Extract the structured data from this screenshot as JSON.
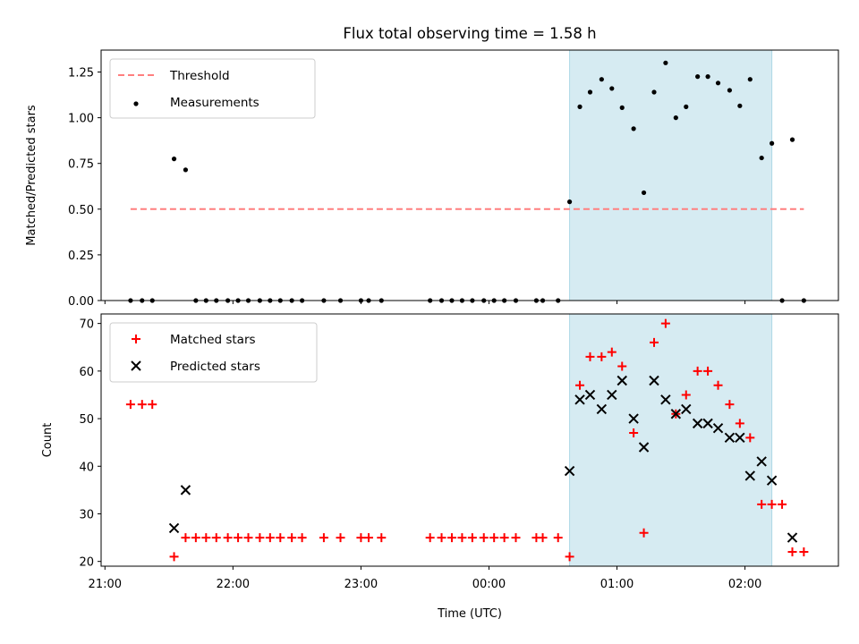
{
  "chart_data": {
    "title": "Flux total observing time = 1.58 h",
    "xlabel": "Time (UTC)",
    "x_unit": "hours relative to 00:00 UTC",
    "xlim": [
      -3.03,
      2.73
    ],
    "x_ticks": [
      {
        "x": -3,
        "label": "21:00"
      },
      {
        "x": -2,
        "label": "22:00"
      },
      {
        "x": -1,
        "label": "23:00"
      },
      {
        "x": 0,
        "label": "00:00"
      },
      {
        "x": 1,
        "label": "01:00"
      },
      {
        "x": 2,
        "label": "02:00"
      }
    ],
    "shaded_interval": {
      "x_start": 0.63,
      "x_end": 2.21,
      "color": "#add8e6"
    },
    "panels": [
      {
        "type": "scatter",
        "ylabel": "Matched/Predicted stars",
        "ylim": [
          0,
          1.37
        ],
        "y_ticks": [
          0,
          0.25,
          0.5,
          0.75,
          1.0,
          1.25
        ],
        "y_tick_labels": [
          "0.00",
          "0.25",
          "0.50",
          "0.75",
          "1.00",
          "1.25"
        ],
        "legend": {
          "position": "top-left",
          "entries": [
            "Threshold",
            "Measurements"
          ]
        },
        "threshold": {
          "name": "Threshold",
          "y": 0.5,
          "x_start": -2.8,
          "x_end": 2.46,
          "color": "#ff7f7f"
        },
        "series": [
          {
            "name": "Measurements",
            "color": "#000000",
            "marker": "dot",
            "points": [
              [
                -2.8,
                0
              ],
              [
                -2.71,
                0
              ],
              [
                -2.63,
                0
              ],
              [
                -2.46,
                0.775
              ],
              [
                -2.37,
                0.715
              ],
              [
                -2.29,
                0
              ],
              [
                -2.21,
                0
              ],
              [
                -2.13,
                0
              ],
              [
                -2.04,
                0
              ],
              [
                -1.96,
                0
              ],
              [
                -1.88,
                0
              ],
              [
                -1.79,
                0
              ],
              [
                -1.71,
                0
              ],
              [
                -1.63,
                0
              ],
              [
                -1.54,
                0
              ],
              [
                -1.46,
                0
              ],
              [
                -1.29,
                0
              ],
              [
                -1.16,
                0
              ],
              [
                -1.0,
                0
              ],
              [
                -0.94,
                0
              ],
              [
                -0.84,
                0
              ],
              [
                -0.46,
                0
              ],
              [
                -0.37,
                0
              ],
              [
                -0.29,
                0
              ],
              [
                -0.21,
                0
              ],
              [
                -0.13,
                0
              ],
              [
                -0.04,
                0
              ],
              [
                0.04,
                0
              ],
              [
                0.12,
                0
              ],
              [
                0.21,
                0
              ],
              [
                0.37,
                0
              ],
              [
                0.42,
                0
              ],
              [
                0.54,
                0
              ],
              [
                0.63,
                0.54
              ],
              [
                0.71,
                1.06
              ],
              [
                0.79,
                1.14
              ],
              [
                0.88,
                1.21
              ],
              [
                0.96,
                1.16
              ],
              [
                1.04,
                1.055
              ],
              [
                1.13,
                0.94
              ],
              [
                1.21,
                0.59
              ],
              [
                1.29,
                1.14
              ],
              [
                1.38,
                1.3
              ],
              [
                1.46,
                1.0
              ],
              [
                1.54,
                1.06
              ],
              [
                1.63,
                1.225
              ],
              [
                1.71,
                1.225
              ],
              [
                1.79,
                1.19
              ],
              [
                1.88,
                1.15
              ],
              [
                1.96,
                1.065
              ],
              [
                2.04,
                1.21
              ],
              [
                2.13,
                0.78
              ],
              [
                2.21,
                0.86
              ],
              [
                2.29,
                0
              ],
              [
                2.37,
                0.88
              ],
              [
                2.46,
                0
              ]
            ]
          }
        ]
      },
      {
        "type": "scatter",
        "ylabel": "Count",
        "ylim": [
          19,
          72
        ],
        "y_ticks": [
          20,
          30,
          40,
          50,
          60,
          70
        ],
        "y_tick_labels": [
          "20",
          "30",
          "40",
          "50",
          "60",
          "70"
        ],
        "legend": {
          "position": "top-left",
          "entries": [
            "Matched stars",
            "Predicted stars"
          ]
        },
        "series": [
          {
            "name": "Matched stars",
            "color": "#ff0000",
            "marker": "plus",
            "points": [
              [
                -2.8,
                53
              ],
              [
                -2.71,
                53
              ],
              [
                -2.63,
                53
              ],
              [
                -2.46,
                21
              ],
              [
                -2.37,
                25
              ],
              [
                -2.29,
                25
              ],
              [
                -2.21,
                25
              ],
              [
                -2.13,
                25
              ],
              [
                -2.04,
                25
              ],
              [
                -1.96,
                25
              ],
              [
                -1.88,
                25
              ],
              [
                -1.79,
                25
              ],
              [
                -1.71,
                25
              ],
              [
                -1.63,
                25
              ],
              [
                -1.54,
                25
              ],
              [
                -1.46,
                25
              ],
              [
                -1.29,
                25
              ],
              [
                -1.16,
                25
              ],
              [
                -1.0,
                25
              ],
              [
                -0.94,
                25
              ],
              [
                -0.84,
                25
              ],
              [
                -0.46,
                25
              ],
              [
                -0.37,
                25
              ],
              [
                -0.29,
                25
              ],
              [
                -0.21,
                25
              ],
              [
                -0.13,
                25
              ],
              [
                -0.04,
                25
              ],
              [
                0.04,
                25
              ],
              [
                0.12,
                25
              ],
              [
                0.21,
                25
              ],
              [
                0.37,
                25
              ],
              [
                0.42,
                25
              ],
              [
                0.54,
                25
              ],
              [
                0.63,
                21
              ],
              [
                0.71,
                57
              ],
              [
                0.79,
                63
              ],
              [
                0.88,
                63
              ],
              [
                0.96,
                64
              ],
              [
                1.04,
                61
              ],
              [
                1.13,
                47
              ],
              [
                1.21,
                26
              ],
              [
                1.29,
                66
              ],
              [
                1.38,
                70
              ],
              [
                1.46,
                51
              ],
              [
                1.54,
                55
              ],
              [
                1.63,
                60
              ],
              [
                1.71,
                60
              ],
              [
                1.79,
                57
              ],
              [
                1.88,
                53
              ],
              [
                1.96,
                49
              ],
              [
                2.04,
                46
              ],
              [
                2.13,
                32
              ],
              [
                2.21,
                32
              ],
              [
                2.29,
                32
              ],
              [
                2.37,
                22
              ],
              [
                2.46,
                22
              ]
            ]
          },
          {
            "name": "Predicted stars",
            "color": "#000000",
            "marker": "x",
            "points": [
              [
                -2.46,
                27
              ],
              [
                -2.37,
                35
              ],
              [
                0.63,
                39
              ],
              [
                0.71,
                54
              ],
              [
                0.79,
                55
              ],
              [
                0.88,
                52
              ],
              [
                0.96,
                55
              ],
              [
                1.04,
                58
              ],
              [
                1.13,
                50
              ],
              [
                1.21,
                44
              ],
              [
                1.29,
                58
              ],
              [
                1.38,
                54
              ],
              [
                1.46,
                51
              ],
              [
                1.54,
                52
              ],
              [
                1.63,
                49
              ],
              [
                1.71,
                49
              ],
              [
                1.79,
                48
              ],
              [
                1.88,
                46
              ],
              [
                1.96,
                46
              ],
              [
                2.04,
                38
              ],
              [
                2.13,
                41
              ],
              [
                2.21,
                37
              ],
              [
                2.37,
                25
              ]
            ]
          }
        ]
      }
    ]
  }
}
